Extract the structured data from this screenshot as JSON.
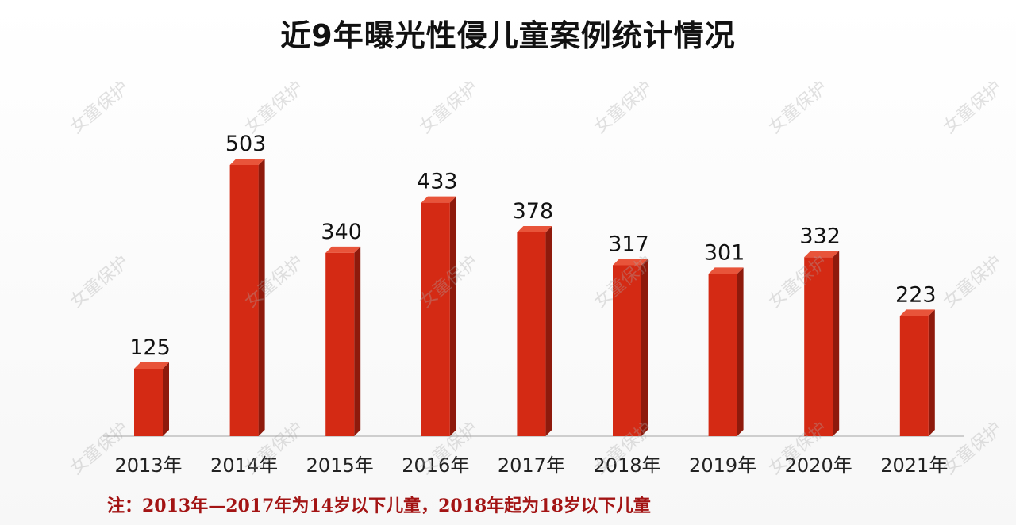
{
  "title": "近9年曝光性侵儿童案例统计情况",
  "watermark": "女童保护",
  "note": "注：2013年—2017年为14岁以下儿童，2018年起为18岁以下儿童",
  "colors": {
    "bar_front": "#d42a14",
    "bar_side": "#8e1a0c",
    "bar_top": "#e8543a",
    "note_text": "#a31414",
    "axis": "#bfbfbf"
  },
  "chart_data": {
    "type": "bar",
    "title": "近9年曝光性侵儿童案例统计情况",
    "categories": [
      "2013年",
      "2014年",
      "2015年",
      "2016年",
      "2017年",
      "2018年",
      "2019年",
      "2020年",
      "2021年"
    ],
    "values": [
      125,
      503,
      340,
      433,
      378,
      317,
      301,
      332,
      223
    ],
    "data_labels": [
      "125",
      "503",
      "340",
      "433",
      "378",
      "317",
      "301",
      "332",
      "223"
    ],
    "xlabel": "",
    "ylabel": "",
    "ylim": [
      0,
      520
    ],
    "grid": false,
    "legend": "none"
  }
}
